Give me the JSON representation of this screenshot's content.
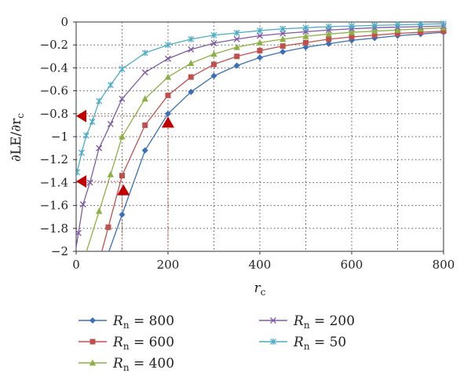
{
  "chart_data": {
    "type": "line",
    "xlabel": "r",
    "xlabel_sub": "c",
    "ylabel": "∂LE/∂r",
    "ylabel_sub": "c",
    "xlim": [
      0,
      800
    ],
    "ylim": [
      -2,
      0
    ],
    "x_ticks": [
      0,
      200,
      400,
      600,
      800
    ],
    "x_tick_labels": [
      "0",
      "200",
      "400",
      "600",
      "800"
    ],
    "y_ticks": [
      0,
      -0.2,
      -0.4,
      -0.6,
      -0.8,
      -1,
      -1.2,
      -1.4,
      -1.6,
      -1.8,
      -2
    ],
    "y_tick_labels": [
      "0",
      "−0.2",
      "−0.4",
      "−0.6",
      "−0.8",
      "−1",
      "−1.2",
      "−1.4",
      "−1.6",
      "−1.8",
      "−2"
    ],
    "vertical_dotted_gridlines": [
      100,
      200,
      300,
      400,
      500,
      600,
      700
    ],
    "horizontal_dotted_gridlines": [
      -0.2,
      -0.4,
      -0.6,
      -0.8,
      -1,
      -1.2,
      -1.4,
      -1.6,
      -1.8
    ],
    "legend_placement": "bottom, two columns",
    "series": [
      {
        "name": "R",
        "name_sub": "n",
        "name_suffix": " = 800",
        "color": "#3a70b8",
        "marker": "diamond",
        "x": [
          100,
          150,
          200,
          250,
          300,
          350,
          400,
          450,
          500,
          550,
          600,
          650,
          700,
          750,
          800
        ],
        "y": [
          -1.68,
          -1.12,
          -0.8,
          -0.61,
          -0.47,
          -0.38,
          -0.31,
          -0.26,
          -0.22,
          -0.19,
          -0.16,
          -0.14,
          -0.12,
          -0.105,
          -0.09
        ]
      },
      {
        "name": "R",
        "name_sub": "n",
        "name_suffix": " = 600",
        "color": "#c0504d",
        "marker": "square",
        "x": [
          70,
          100,
          150,
          200,
          250,
          300,
          350,
          400,
          450,
          500,
          550,
          600,
          650,
          700,
          750,
          800
        ],
        "y": [
          -1.79,
          -1.34,
          -0.9,
          -0.64,
          -0.48,
          -0.37,
          -0.3,
          -0.25,
          -0.21,
          -0.18,
          -0.15,
          -0.13,
          -0.115,
          -0.1,
          -0.09,
          -0.08
        ]
      },
      {
        "name": "R",
        "name_sub": "n",
        "name_suffix": " = 400",
        "color": "#8cb043",
        "marker": "triangle",
        "x": [
          50,
          75,
          100,
          150,
          200,
          250,
          300,
          350,
          400,
          450,
          500,
          550,
          600,
          650,
          700,
          750,
          800
        ],
        "y": [
          -1.65,
          -1.33,
          -1.0,
          -0.67,
          -0.48,
          -0.36,
          -0.28,
          -0.22,
          -0.18,
          -0.15,
          -0.125,
          -0.105,
          -0.09,
          -0.08,
          -0.07,
          -0.06,
          -0.05
        ]
      },
      {
        "name": "R",
        "name_sub": "n",
        "name_suffix": " = 200",
        "color": "#7d5ba6",
        "marker": "x",
        "x": [
          5,
          15,
          30,
          50,
          75,
          100,
          150,
          200,
          250,
          300,
          350,
          400,
          450,
          500,
          550,
          600,
          650,
          700,
          750,
          800
        ],
        "y": [
          -1.84,
          -1.59,
          -1.4,
          -1.1,
          -0.89,
          -0.67,
          -0.44,
          -0.32,
          -0.24,
          -0.185,
          -0.15,
          -0.12,
          -0.1,
          -0.085,
          -0.07,
          -0.06,
          -0.05,
          -0.045,
          -0.04,
          -0.035
        ]
      },
      {
        "name": "R",
        "name_sub": "n",
        "name_suffix": " = 50",
        "color": "#4bacc6",
        "marker": "star",
        "x": [
          2,
          12,
          22,
          35,
          50,
          75,
          100,
          150,
          200,
          250,
          300,
          350,
          400,
          450,
          500,
          550,
          600,
          650,
          700,
          750,
          800
        ],
        "y": [
          -1.31,
          -1.14,
          -0.99,
          -0.87,
          -0.69,
          -0.55,
          -0.41,
          -0.27,
          -0.2,
          -0.15,
          -0.115,
          -0.095,
          -0.075,
          -0.06,
          -0.05,
          -0.04,
          -0.035,
          -0.03,
          -0.025,
          -0.02,
          -0.015
        ]
      }
    ],
    "annotations": [
      {
        "shape": "triangle-left",
        "x": 12,
        "y": -0.82,
        "color": "#c00000"
      },
      {
        "shape": "triangle-left",
        "x": 12,
        "y": -1.39,
        "color": "#c00000"
      },
      {
        "shape": "triangle-up",
        "x": 103,
        "y": -1.47,
        "color": "#c00000"
      },
      {
        "shape": "triangle-up",
        "x": 200,
        "y": -0.88,
        "color": "#c00000"
      }
    ],
    "annotation_dotted_lines": [
      {
        "from": [
          0,
          -0.82
        ],
        "to": [
          200,
          -0.82
        ],
        "color": "#c0504d"
      },
      {
        "from": [
          0,
          -1.39
        ],
        "to": [
          100,
          -1.39
        ],
        "color": "#c0504d"
      },
      {
        "from": [
          100,
          -1.39
        ],
        "to": [
          100,
          -2
        ],
        "color": "#c0504d"
      },
      {
        "from": [
          200,
          -0.82
        ],
        "to": [
          200,
          -2
        ],
        "color": "#c0504d"
      }
    ]
  }
}
